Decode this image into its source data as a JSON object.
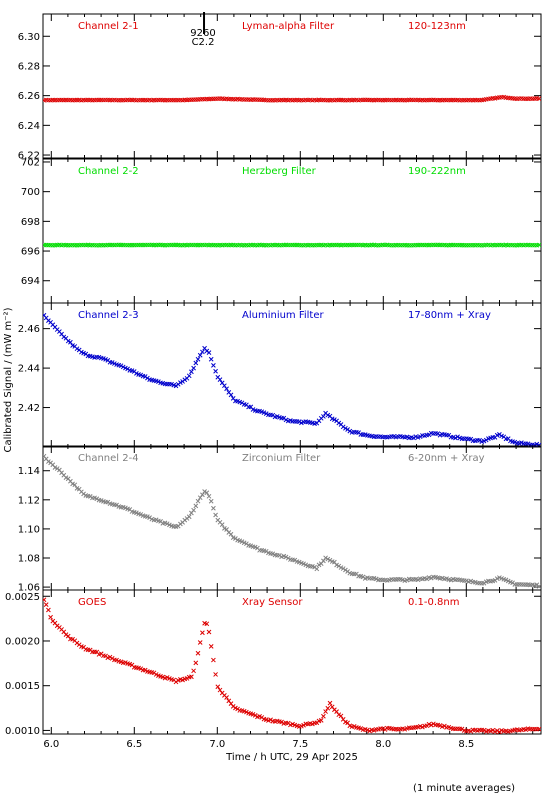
{
  "ylabel": "Calibrated Signal / (mW m⁻²)",
  "xlabel": "Time / h UTC, 29 Apr 2025",
  "footnote": "(1 minute averages)",
  "flare_marker": {
    "line1": "9260",
    "line2": "C2.2",
    "x": 6.92
  },
  "x_ticks": [
    6.0,
    6.5,
    7.0,
    7.5,
    8.0,
    8.5
  ],
  "x_tick_labels": [
    "6.0",
    "6.5",
    "7.0",
    "7.5",
    "8.0",
    "8.5"
  ],
  "xlim": [
    5.95,
    8.95
  ],
  "colors": {
    "channel_2_1": "#dd0000",
    "channel_2_2": "#00dd00",
    "channel_2_3": "#0000cc",
    "channel_2_4": "#808080",
    "goes": "#dd0000"
  },
  "panels": [
    {
      "channel": "Channel 2-1",
      "filter": "Lyman-alpha Filter",
      "band": "120-123nm",
      "color_key": "channel_2_1",
      "ylim": [
        6.218,
        6.315
      ],
      "y_ticks": [
        6.22,
        6.24,
        6.26,
        6.28,
        6.3
      ],
      "y_tick_labels": [
        "6.22",
        "6.24",
        "6.26",
        "6.28",
        "6.30"
      ]
    },
    {
      "channel": "Channel 2-2",
      "filter": "Herzberg Filter",
      "band": "190-222nm",
      "color_key": "channel_2_2",
      "ylim": [
        692.5,
        702.2
      ],
      "y_ticks": [
        694,
        696,
        698,
        700,
        702
      ],
      "y_tick_labels": [
        "694",
        "696",
        "698",
        "700",
        "702"
      ]
    },
    {
      "channel": "Channel 2-3",
      "filter": "Aluminium Filter",
      "band": "17-80nm + Xray",
      "color_key": "channel_2_3",
      "ylim": [
        2.4,
        2.473
      ],
      "y_ticks": [
        2.42,
        2.44,
        2.46
      ],
      "y_tick_labels": [
        "2.42",
        "2.44",
        "2.46"
      ]
    },
    {
      "channel": "Channel 2-4",
      "filter": "Zirconium Filter",
      "band": "6-20nm + Xray",
      "color_key": "channel_2_4",
      "ylim": [
        1.058,
        1.157
      ],
      "y_ticks": [
        1.06,
        1.08,
        1.1,
        1.12,
        1.14
      ],
      "y_tick_labels": [
        "1.06",
        "1.08",
        "1.10",
        "1.12",
        "1.14"
      ]
    },
    {
      "channel": "GOES",
      "filter": "Xray Sensor",
      "band": "0.1-0.8nm",
      "color_key": "goes",
      "ylim": [
        0.00096,
        0.00257
      ],
      "y_ticks": [
        0.001,
        0.0015,
        0.002,
        0.0025
      ],
      "y_tick_labels": [
        "0.0010",
        "0.0015",
        "0.0020",
        "0.0025"
      ]
    }
  ],
  "chart_data": {
    "type": "scatter",
    "title": "",
    "xlabel": "Time / h UTC, 29 Apr 2025",
    "ylabel": "Calibrated Signal / (mW m⁻²)",
    "xlim": [
      5.95,
      8.95
    ],
    "grid": false,
    "series": [
      {
        "name": "Channel 2-1",
        "x": [
          5.95,
          6.2,
          6.5,
          6.8,
          7.0,
          7.3,
          7.6,
          8.0,
          8.3,
          8.5,
          8.6,
          8.65,
          8.72,
          8.8,
          8.95
        ],
        "y": [
          6.257,
          6.257,
          6.257,
          6.257,
          6.258,
          6.257,
          6.257,
          6.257,
          6.257,
          6.257,
          6.257,
          6.258,
          6.259,
          6.258,
          6.258
        ]
      },
      {
        "name": "Channel 2-2",
        "x": [
          5.95,
          6.2,
          6.5,
          6.8,
          7.1,
          7.4,
          7.8,
          8.2,
          8.6,
          8.95
        ],
        "y": [
          696.4,
          696.4,
          696.4,
          696.4,
          696.4,
          696.4,
          696.4,
          696.4,
          696.4,
          696.4
        ]
      },
      {
        "name": "Channel 2-3",
        "x": [
          5.95,
          6.05,
          6.15,
          6.2,
          6.3,
          6.45,
          6.6,
          6.75,
          6.83,
          6.88,
          6.92,
          6.95,
          7.0,
          7.1,
          7.25,
          7.45,
          7.6,
          7.65,
          7.7,
          7.8,
          7.9,
          8.0,
          8.2,
          8.3,
          8.5,
          8.6,
          8.7,
          8.75,
          8.8,
          8.95
        ],
        "y": [
          2.467,
          2.458,
          2.45,
          2.447,
          2.445,
          2.44,
          2.434,
          2.431,
          2.436,
          2.444,
          2.45,
          2.448,
          2.436,
          2.424,
          2.418,
          2.413,
          2.412,
          2.417,
          2.414,
          2.408,
          2.406,
          2.405,
          2.405,
          2.407,
          2.404,
          2.403,
          2.406,
          2.404,
          2.402,
          2.401
        ]
      },
      {
        "name": "Channel 2-4",
        "x": [
          5.95,
          6.05,
          6.15,
          6.2,
          6.3,
          6.45,
          6.6,
          6.75,
          6.83,
          6.88,
          6.92,
          6.95,
          7.0,
          7.1,
          7.25,
          7.45,
          7.6,
          7.65,
          7.7,
          7.8,
          7.9,
          8.0,
          8.2,
          8.3,
          8.5,
          8.6,
          8.7,
          8.75,
          8.8,
          8.95
        ],
        "y": [
          1.15,
          1.14,
          1.129,
          1.123,
          1.12,
          1.114,
          1.107,
          1.101,
          1.108,
          1.118,
          1.126,
          1.123,
          1.106,
          1.094,
          1.086,
          1.079,
          1.073,
          1.08,
          1.077,
          1.07,
          1.066,
          1.065,
          1.065,
          1.067,
          1.064,
          1.063,
          1.066,
          1.064,
          1.062,
          1.061
        ]
      },
      {
        "name": "GOES",
        "x": [
          5.95,
          6.0,
          6.1,
          6.2,
          6.4,
          6.6,
          6.75,
          6.85,
          6.9,
          6.93,
          6.95,
          7.0,
          7.1,
          7.3,
          7.5,
          7.62,
          7.68,
          7.72,
          7.8,
          7.9,
          8.0,
          8.1,
          8.2,
          8.3,
          8.5,
          8.7,
          8.95
        ],
        "y": [
          0.0025,
          0.00225,
          0.00205,
          0.00192,
          0.00178,
          0.00165,
          0.00155,
          0.0016,
          0.002,
          0.00225,
          0.0021,
          0.0015,
          0.00125,
          0.00112,
          0.00105,
          0.0011,
          0.0013,
          0.0012,
          0.00105,
          0.001,
          0.00102,
          0.00101,
          0.00103,
          0.00107,
          0.001,
          0.00099,
          0.00102
        ]
      }
    ]
  }
}
